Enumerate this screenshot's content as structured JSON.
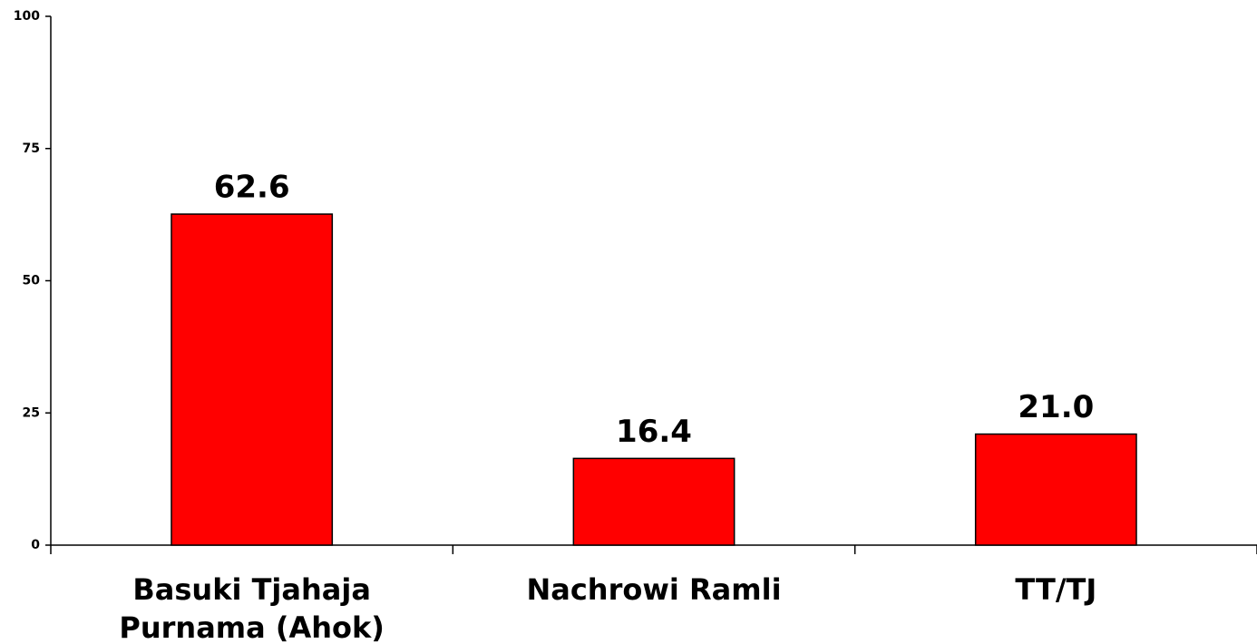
{
  "chart_data": {
    "type": "bar",
    "categories": [
      "Basuki Tjahaja Purnama (Ahok)",
      "Nachrowi Ramli",
      "TT/TJ"
    ],
    "values": [
      62.6,
      16.4,
      21.0
    ],
    "value_labels": [
      "62.6",
      "16.4",
      "21.0"
    ],
    "color": "#ff0000",
    "ylim": [
      0,
      100
    ],
    "yticks": [
      0,
      25,
      50,
      75,
      100
    ],
    "grid": false
  }
}
